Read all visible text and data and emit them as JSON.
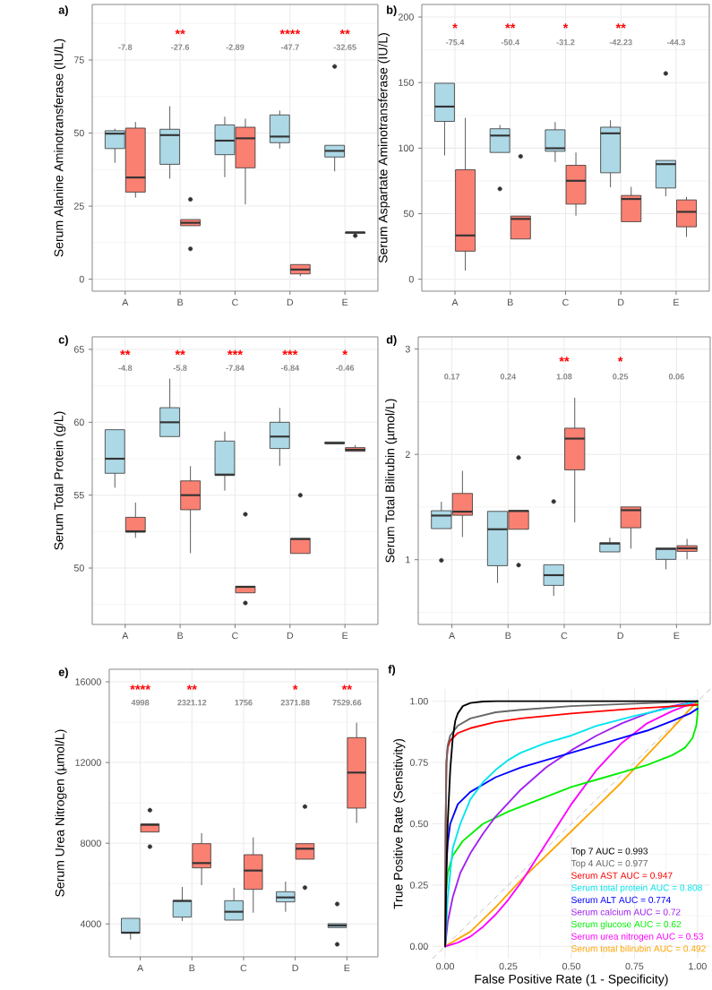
{
  "chart_data": [
    {
      "type": "box",
      "title": "a)",
      "ylabel": "Serum Alanine Aminotransferase (IU/L)",
      "categories": [
        "A",
        "B",
        "C",
        "D",
        "E"
      ],
      "ylim": [
        -4.1,
        94
      ],
      "yticks": [
        0,
        25,
        50,
        75
      ],
      "grid": true,
      "series": [
        {
          "color": "#add8e6",
          "boxes": [
            {
              "low": 39.8,
              "q1": 44.7,
              "median": 49.8,
              "q3": 50.8,
              "high": 51.5
            },
            {
              "low": 34.4,
              "q1": 39.3,
              "median": 49.3,
              "q3": 51.3,
              "high": 59.2
            },
            {
              "low": 34.9,
              "q1": 42.6,
              "median": 47.4,
              "q3": 52.8,
              "high": 55.6
            },
            {
              "low": 44.7,
              "q1": 46.7,
              "median": 48.8,
              "q3": 56.2,
              "high": 57.7
            },
            {
              "low": 36.9,
              "q1": 41.8,
              "median": 43.9,
              "q3": 45.8,
              "high": 45.8,
              "outliers": [
                72.8
              ]
            }
          ]
        },
        {
          "color": "#fa8072",
          "boxes": [
            {
              "low": 27.9,
              "q1": 29.8,
              "median": 34.8,
              "q3": 51.7,
              "high": 53.8
            },
            {
              "low": 18.3,
              "q1": 18.3,
              "median": 19.3,
              "q3": 20.4,
              "high": 20.4,
              "outliers": [
                27.3,
                10.4
              ]
            },
            {
              "low": 25.6,
              "q1": 38.1,
              "median": 48.2,
              "q3": 52.0,
              "high": 54.9
            },
            {
              "low": 1.0,
              "q1": 1.8,
              "median": 3.3,
              "q3": 5.0,
              "high": 5.0
            },
            {
              "low": 15.7,
              "q1": 15.7,
              "median": 16.0,
              "q3": 16.1,
              "high": 16.1,
              "outliers": [
                14.9
              ]
            }
          ]
        }
      ],
      "annotations": [
        "**",
        "****",
        "**",
        "-7.8",
        "-27.6",
        "-2.89",
        "-47.7",
        "-32.65"
      ]
    },
    {
      "type": "box",
      "title": "b)",
      "ylabel": "Serum Aspartate Aminotransferase (IU/L)",
      "categories": [
        "A",
        "B",
        "C",
        "D",
        "E"
      ],
      "ylim": [
        -9.1,
        209.6
      ],
      "yticks": [
        0,
        50,
        100,
        150,
        200
      ],
      "grid": true,
      "series": [
        {
          "color": "#add8e6",
          "boxes": [
            {
              "low": 94.4,
              "q1": 120.4,
              "median": 131.7,
              "q3": 149.5,
              "high": 149.5
            },
            {
              "low": 96.7,
              "q1": 96.7,
              "median": 109.6,
              "q3": 114.8,
              "high": 117.6,
              "outliers": [
                68.9
              ]
            },
            {
              "low": 89.4,
              "q1": 97.6,
              "median": 99.9,
              "q3": 114.0,
              "high": 119.9
            },
            {
              "low": 70.1,
              "q1": 81.2,
              "median": 111.3,
              "q3": 116.0,
              "high": 121.3
            },
            {
              "low": 63.3,
              "q1": 69.6,
              "median": 87.8,
              "q3": 90.6,
              "high": 90.6,
              "outliers": [
                157.0
              ]
            }
          ]
        },
        {
          "color": "#fa8072",
          "boxes": [
            {
              "low": 6.6,
              "q1": 21.4,
              "median": 33.4,
              "q3": 83.5,
              "high": 123.1
            },
            {
              "low": 30.7,
              "q1": 30.7,
              "median": 46.0,
              "q3": 48.2,
              "high": 48.2,
              "outliers": [
                93.7
              ]
            },
            {
              "low": 48.5,
              "q1": 57.3,
              "median": 75.1,
              "q3": 86.9,
              "high": 96.7
            },
            {
              "low": 43.9,
              "q1": 43.9,
              "median": 61.2,
              "q3": 63.9,
              "high": 70.5
            },
            {
              "low": 32.3,
              "q1": 40.0,
              "median": 51.4,
              "q3": 60.5,
              "high": 62.8
            }
          ]
        }
      ],
      "annotations": [
        "*",
        "**",
        "*",
        "**",
        "-75.4",
        "-50.4",
        "-31.2",
        "-42.23",
        "-44.3"
      ]
    },
    {
      "type": "box",
      "title": "c)",
      "ylabel": "Serum Total Protein (g/L)",
      "categories": [
        "A",
        "B",
        "C",
        "D",
        "E"
      ],
      "ylim": [
        46.13,
        65.86
      ],
      "yticks": [
        50,
        55,
        60,
        65
      ],
      "grid": true,
      "series": [
        {
          "color": "#add8e6",
          "boxes": [
            {
              "low": 55.51,
              "q1": 56.5,
              "median": 57.5,
              "q3": 59.49,
              "high": 59.49
            },
            {
              "low": 59.02,
              "q1": 59.02,
              "median": 60.0,
              "q3": 61.0,
              "high": 62.99
            },
            {
              "low": 55.31,
              "q1": 56.35,
              "median": 56.41,
              "q3": 58.71,
              "high": 59.36
            },
            {
              "low": 57.01,
              "q1": 58.2,
              "median": 59.02,
              "q3": 60.0,
              "high": 60.98
            },
            {
              "low": 58.53,
              "q1": 58.53,
              "median": 58.57,
              "q3": 58.65,
              "high": 58.65
            }
          ]
        },
        {
          "color": "#fa8072",
          "boxes": [
            {
              "low": 52.07,
              "q1": 52.46,
              "median": 52.52,
              "q3": 53.48,
              "high": 54.49
            },
            {
              "low": 51.02,
              "q1": 54.0,
              "median": 55.0,
              "q3": 55.98,
              "high": 56.99
            },
            {
              "low": 48.3,
              "q1": 48.3,
              "median": 48.71,
              "q3": 48.75,
              "high": 48.75,
              "outliers": [
                53.69,
                47.6
              ]
            },
            {
              "low": 51.0,
              "q1": 51.0,
              "median": 51.99,
              "q3": 52.03,
              "high": 52.03,
              "outliers": [
                55.0
              ]
            },
            {
              "low": 58.01,
              "q1": 58.01,
              "median": 58.11,
              "q3": 58.26,
              "high": 58.44
            }
          ]
        }
      ],
      "annotations": [
        "**",
        "**",
        "***",
        "***",
        "*",
        "-4.8",
        "-5.8",
        "-7.84",
        "-6.84",
        "-0.46"
      ]
    },
    {
      "type": "box",
      "title": "d)",
      "ylabel": "Serum Total Bilirubin (µmol/L)",
      "categories": [
        "A",
        "B",
        "C",
        "D",
        "E"
      ],
      "ylim": [
        0.385,
        3.116
      ],
      "yticks": [
        1,
        2,
        3
      ],
      "grid": true,
      "series": [
        {
          "color": "#add8e6",
          "boxes": [
            {
              "low": 1.295,
              "q1": 1.295,
              "median": 1.419,
              "q3": 1.465,
              "high": 1.55,
              "outliers": [
                0.994
              ]
            },
            {
              "low": 0.779,
              "q1": 0.943,
              "median": 1.289,
              "q3": 1.459,
              "high": 1.459
            },
            {
              "low": 0.657,
              "q1": 0.756,
              "median": 0.853,
              "q3": 0.952,
              "high": 0.952,
              "outliers": [
                1.552
              ]
            },
            {
              "low": 1.074,
              "q1": 1.074,
              "median": 1.153,
              "q3": 1.161,
              "high": 1.21
            },
            {
              "low": 0.909,
              "q1": 1.003,
              "median": 1.102,
              "q3": 1.11,
              "high": 1.11
            }
          ]
        },
        {
          "color": "#fa8072",
          "boxes": [
            {
              "low": 1.215,
              "q1": 1.422,
              "median": 1.456,
              "q3": 1.629,
              "high": 1.844
            },
            {
              "low": 1.289,
              "q1": 1.289,
              "median": 1.462,
              "q3": 1.467,
              "high": 1.467,
              "outliers": [
                1.969,
                0.949
              ]
            },
            {
              "low": 1.354,
              "q1": 1.853,
              "median": 2.15,
              "q3": 2.249,
              "high": 2.538
            },
            {
              "low": 1.105,
              "q1": 1.303,
              "median": 1.47,
              "q3": 1.501,
              "high": 1.501
            },
            {
              "low": 1.003,
              "q1": 1.079,
              "median": 1.108,
              "q3": 1.133,
              "high": 1.198
            }
          ]
        }
      ],
      "annotations": [
        "**",
        "*",
        "0.17",
        "0.24",
        "1.08",
        "0.25",
        "0.06"
      ]
    },
    {
      "type": "box",
      "title": "e)",
      "ylabel": "Serum Urea Nitrogen (µmol/L)",
      "categories": [
        "A",
        "B",
        "C",
        "D",
        "E"
      ],
      "ylim": [
        2369,
        16622
      ],
      "yticks": [
        4000,
        8000,
        12000,
        16000
      ],
      "grid": true,
      "series": [
        {
          "color": "#add8e6",
          "boxes": [
            {
              "low": 3228,
              "q1": 3538,
              "median": 3568,
              "q3": 4278,
              "high": 4278
            },
            {
              "low": 4145,
              "q1": 4338,
              "median": 5137,
              "q3": 5166,
              "high": 5834
            },
            {
              "low": 4190,
              "q1": 4190,
              "median": 4604,
              "q3": 5152,
              "high": 5788
            },
            {
              "low": 4604,
              "q1": 5092,
              "median": 5314,
              "q3": 5596,
              "high": 6099
            },
            {
              "low": 3820,
              "q1": 3820,
              "median": 3923,
              "q3": 4012,
              "high": 4012,
              "outliers": [
                4989,
                2991
              ]
            }
          ]
        },
        {
          "color": "#fa8072",
          "boxes": [
            {
              "low": 8556,
              "q1": 8556,
              "median": 8911,
              "q3": 8955,
              "high": 8955,
              "outliers": [
                9636,
                7830
              ]
            },
            {
              "low": 5921,
              "q1": 6780,
              "median": 7016,
              "q3": 7978,
              "high": 8496
            },
            {
              "low": 4560,
              "q1": 5714,
              "median": 6646,
              "q3": 7431,
              "high": 8289
            },
            {
              "low": 7209,
              "q1": 7209,
              "median": 7727,
              "q3": 7978,
              "high": 7978,
              "outliers": [
                9814,
                5803
              ]
            },
            {
              "low": 9000,
              "q1": 9740,
              "median": 11501,
              "q3": 13232,
              "high": 13972
            }
          ]
        }
      ],
      "annotations": [
        "****",
        "**",
        "*",
        "**",
        "4998",
        "2321.12",
        "1756",
        "2371.88",
        "7529.66"
      ]
    },
    {
      "type": "line",
      "title": "f)",
      "xlabel": "False Positive Rate (1 - Specificity)",
      "ylabel": "True Positive Rate (Sensitivity)",
      "xlim": [
        -0.05,
        1.05
      ],
      "ylim": [
        -0.05,
        1.05
      ],
      "xticks": [
        {
          "value": 0,
          "label": "0.00"
        },
        {
          "value": 0.25,
          "label": "0.25"
        },
        {
          "value": 0.5,
          "label": "0.50"
        },
        {
          "value": 0.75,
          "label": "0.75"
        },
        {
          "value": 1,
          "label": "1.00"
        }
      ],
      "yticks": [
        {
          "value": 0,
          "label": "0.00"
        },
        {
          "value": 0.25,
          "label": "0.25"
        },
        {
          "value": 0.5,
          "label": "0.50"
        },
        {
          "value": 0.75,
          "label": "0.75"
        },
        {
          "value": 1,
          "label": "1.00"
        }
      ],
      "grid": true,
      "legend": "bottom right",
      "line_style": "solid",
      "series": [
        {
          "color": "#b3b3b3",
          "line_style": "dashed",
          "x": [
            -0.05,
            1.05
          ],
          "values": [
            -0.05,
            1.05
          ]
        },
        {
          "name": "Serum total bilirubin AUC = 0.492",
          "color": "#ffa500",
          "x": [
            0,
            0.1,
            0.2,
            0.3,
            0.4,
            0.5,
            0.6,
            0.7,
            0.8,
            0.9,
            1
          ],
          "values": [
            0,
            0.06,
            0.16,
            0.27,
            0.37,
            0.47,
            0.57,
            0.67,
            0.78,
            0.89,
            1
          ]
        },
        {
          "name": "Serum urea nitrogen AUC = 0.53",
          "color": "#ff00ff",
          "x": [
            0,
            0.05,
            0.1,
            0.15,
            0.2,
            0.25,
            0.3,
            0.4,
            0.5,
            0.6,
            0.7,
            0.8,
            0.9,
            1
          ],
          "values": [
            0,
            0.015,
            0.04,
            0.08,
            0.13,
            0.19,
            0.26,
            0.42,
            0.58,
            0.72,
            0.83,
            0.91,
            0.96,
            1
          ]
        },
        {
          "name": "Serum glucose AUC = 0.62",
          "color": "#00ee00",
          "x": [
            0,
            0.002,
            0.01,
            0.03,
            0.07,
            0.15,
            0.25,
            0.4,
            0.5,
            0.6,
            0.7,
            0.8,
            0.9,
            0.95,
            0.98,
            0.995,
            1,
            1
          ],
          "values": [
            0,
            0.2,
            0.3,
            0.37,
            0.43,
            0.5,
            0.55,
            0.61,
            0.65,
            0.68,
            0.71,
            0.74,
            0.78,
            0.81,
            0.85,
            0.9,
            0.95,
            1
          ]
        },
        {
          "name": "Serum calcium AUC = 0.72",
          "color": "#a020f0",
          "x": [
            0,
            0.01,
            0.03,
            0.06,
            0.1,
            0.15,
            0.2,
            0.3,
            0.4,
            0.5,
            0.6,
            0.7,
            0.8,
            0.9,
            1
          ],
          "values": [
            0,
            0.1,
            0.2,
            0.3,
            0.38,
            0.46,
            0.53,
            0.64,
            0.73,
            0.8,
            0.86,
            0.91,
            0.95,
            0.98,
            1
          ]
        },
        {
          "name": "Serum ALT AUC = 0.774",
          "color": "#0000ff",
          "x": [
            0,
            0.003,
            0.01,
            0.02,
            0.05,
            0.1,
            0.2,
            0.3,
            0.4,
            0.5,
            0.6,
            0.7,
            0.8,
            0.9,
            0.97,
            1
          ],
          "values": [
            0,
            0.3,
            0.42,
            0.5,
            0.58,
            0.63,
            0.69,
            0.73,
            0.76,
            0.79,
            0.82,
            0.85,
            0.88,
            0.92,
            0.95,
            0.97
          ]
        },
        {
          "name": "Serum total protein AUC = 0.808",
          "color": "#00e5ee",
          "x": [
            0,
            0.01,
            0.03,
            0.06,
            0.1,
            0.15,
            0.2,
            0.25,
            0.3,
            0.4,
            0.5,
            0.6,
            0.75,
            0.9,
            1
          ],
          "values": [
            0,
            0.2,
            0.4,
            0.5,
            0.6,
            0.67,
            0.72,
            0.76,
            0.79,
            0.83,
            0.86,
            0.9,
            0.94,
            0.975,
            1
          ]
        },
        {
          "name": "Serum AST AUC = 0.947",
          "color": "#ff0000",
          "x": [
            0,
            0.002,
            0.005,
            0.01,
            0.02,
            0.05,
            0.1,
            0.2,
            0.3,
            0.5,
            0.75,
            1
          ],
          "values": [
            0,
            0.5,
            0.75,
            0.81,
            0.84,
            0.87,
            0.89,
            0.915,
            0.93,
            0.95,
            0.97,
            0.985
          ]
        },
        {
          "name": "Top 4 AUC = 0.977",
          "color": "#666666",
          "x": [
            0,
            0.002,
            0.005,
            0.01,
            0.02,
            0.05,
            0.1,
            0.2,
            0.3,
            0.5,
            0.75,
            1
          ],
          "values": [
            0,
            0.5,
            0.75,
            0.82,
            0.86,
            0.9,
            0.93,
            0.955,
            0.965,
            0.98,
            0.99,
            1
          ]
        },
        {
          "name": "Top 7 AUC = 0.993",
          "color": "#000000",
          "x": [
            0,
            0.005,
            0.01,
            0.02,
            0.03,
            0.04,
            0.05,
            0.07,
            0.1,
            0.15,
            0.2,
            0.5,
            1
          ],
          "values": [
            0,
            0.3,
            0.5,
            0.72,
            0.85,
            0.92,
            0.95,
            0.98,
            0.993,
            0.999,
            1,
            1,
            1
          ]
        }
      ]
    }
  ]
}
